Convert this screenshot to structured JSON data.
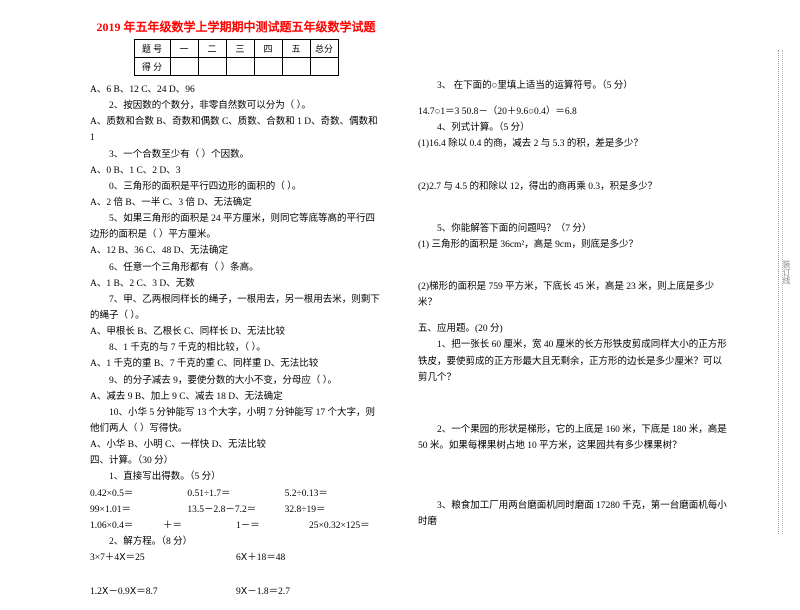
{
  "title": "2019 年五年级数学上学期期中测试题五年级数学试题",
  "scoreTable": {
    "row1": [
      "题  号",
      "一",
      "二",
      "三",
      "四",
      "五",
      "总分"
    ],
    "row2": [
      "得  分",
      "",
      "",
      "",
      "",
      "",
      ""
    ]
  },
  "left": {
    "q1opts": "A、6            B、12           C、24           D、96",
    "q2": "2、按因数的个数分，非零自然数可以分为（      ）。",
    "q2opts": "A、质数和合数   B、奇数和偶数   C、质数、合数和 1   D、奇数、偶数和 1",
    "q3": "3、一个合数至少有（      ）个因数。",
    "q3opts": "A、0            B、1            C、2            D、3",
    "q4": "0、三角形的面积是平行四边形的面积的（      ）。",
    "q4opts": "A、2 倍         B、一半         C、3 倍         D、无法确定",
    "q5": "5、如果三角形的面积是 24 平方厘米，则同它等底等高的平行四边形的面积是（      ）平方厘米。",
    "q5opts": "A、12           B、36           C、48           D、无法确定",
    "q6": "6、任意一个三角形都有（      ）条高。",
    "q6opts": "A、1            B、2            C、3            D、无数",
    "q7": "7、甲、乙两根同样长的绳子，一根用去，另一根用去米，则剩下的绳子（      ）。",
    "q7opts": "A、甲根长       B、乙根长       C、同样长       D、无法比较",
    "q8": "8、1 千克的与 7 千克的相比较，（      ）。",
    "q8opts": "A、1 千克的重   B、7 千克的重   C、同样重       D、无法比较",
    "q9": "9、的分子减去 9，要使分数的大小不变，分母应（      ）。",
    "q9opts": "A、减去 9       B、加上 9       C、减去 18      D、无法确定",
    "q10": "10、小华 5 分钟能写 13 个大字，小明 7 分钟能写 17 个大字，则他们两人（      ）写得快。",
    "q10opts": "A、小华         B、小明         C、一样快       D、无法比较",
    "sec4": "四、计算。（30 分）",
    "sec4_1": "1、直接写出得数。（5 分）",
    "c1a": "0.42×0.5＝",
    "c1b": "0.51÷1.7＝",
    "c1c": "5.2÷0.13＝",
    "c2a": "99×1.01＝",
    "c2b": "13.5－2.8－7.2＝",
    "c2c": "32.8÷19＝",
    "c3a": "1.06×0.4＝",
    "c3b": "＋＝",
    "c3c": "1－＝",
    "c3d": "25×0.32×125＝",
    "sec4_2": "2、解方程。（8 分）",
    "eq1a": "3×7＋4Ⅹ＝25",
    "eq1b": "6Ⅹ＋18＝48",
    "eq2a": "1.2Ⅹ－0.9Ⅹ＝8.7",
    "eq2b": "9Ⅹ－1.8＝2.7"
  },
  "right": {
    "q3": "3、  在下面的○里填上适当的运算符号。（5 分）",
    "q3a": "14.7○1＝3     50.8－（20＋9.6○0.4）＝6.8",
    "q4": "4、列式计算。（5 分）",
    "q4a": "(1)16.4 除以 0.4 的商，减去 2 与 5.3 的积，差是多少？",
    "q4b": "(2)2.7 与 4.5 的和除以 12，得出的商再乘 0.3，积是多少？",
    "q5": "5、你能解答下面的问题吗？（7 分）",
    "q5a": "(1) 三角形的面积是 36cm²，高是 9cm，则底是多少？",
    "q5b": "(2)梯形的面积是 759 平方米，下底长 45 米，高是 23 米，则上底是多少米？",
    "sec5": "五、应用题。(20 分)",
    "ap1": "1、把一张长 60 厘米，宽 40 厘米的长方形铁皮剪成同样大小的正方形铁皮，要使剪成的正方形最大且无剩余，正方形的边长是多少厘米？可以剪几个？",
    "ap2": "2、一个果园的形状是梯形，它的上底是 160 米，下底是 180 米，高是 50 米。如果每棵果树占地 10 平方米，这果园共有多少棵果树？",
    "ap3": "3、粮食加工厂用两台磨面机同时磨面 17280 千克，第一台磨面机每小时磨"
  },
  "binding": "装订线"
}
